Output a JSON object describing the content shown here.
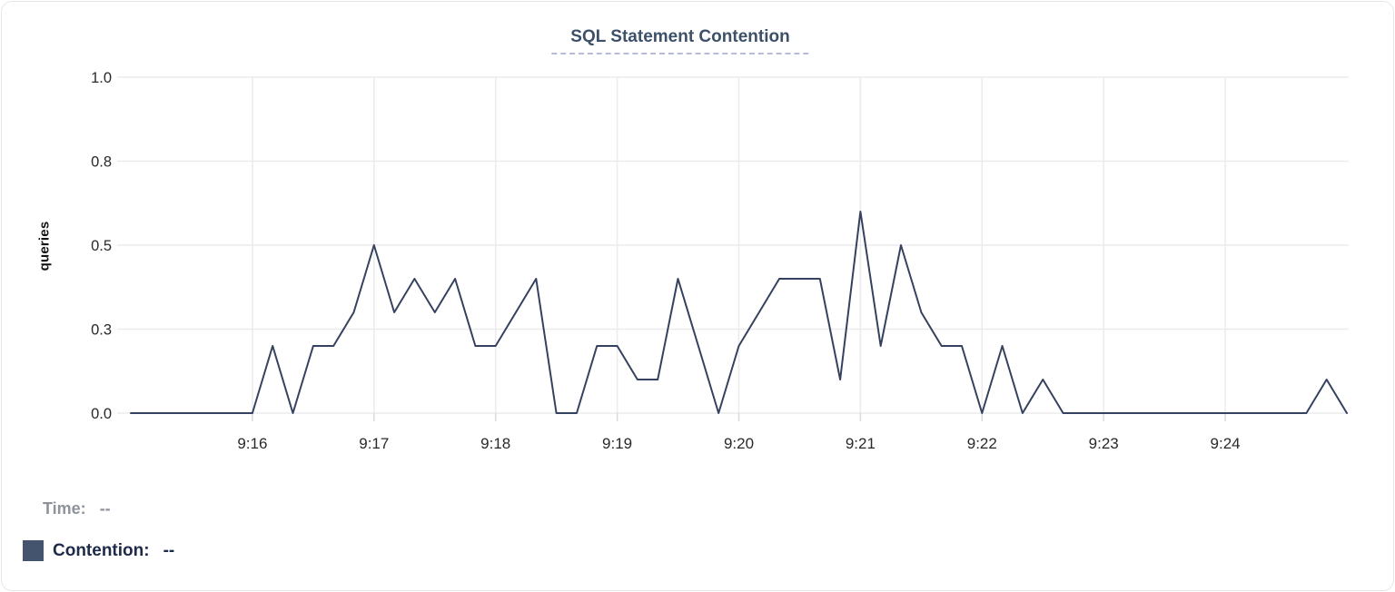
{
  "colors": {
    "line": "#35425f",
    "grid": "#ececef",
    "tick": "#dadade",
    "axis_text": "#28292b",
    "title": "#3d5069",
    "title_underline": "#b6bbd9",
    "legend_time": "#8e939b",
    "legend_series": "#1e2a49",
    "swatch": "#44536e",
    "card_border": "#e7e7ea"
  },
  "legend": {
    "time_label": "Time:",
    "time_value": "--",
    "series_label": "Contention:",
    "series_value": "--"
  },
  "chart_data": {
    "type": "line",
    "title": "SQL Statement Contention",
    "ylabel": "queries",
    "xlabel": "",
    "series_name": "Contention",
    "legend_position": "bottom-left",
    "grid": true,
    "ylim": [
      0,
      1
    ],
    "y_ticks": [
      {
        "value": 0.0,
        "label": "0.0"
      },
      {
        "value": 0.25,
        "label": "0.3"
      },
      {
        "value": 0.5,
        "label": "0.5"
      },
      {
        "value": 0.75,
        "label": "0.8"
      },
      {
        "value": 1.0,
        "label": "1.0"
      }
    ],
    "x_start": "9:15:00",
    "x_end": "9:25:00",
    "interval_seconds": 10,
    "x_tick_labels": [
      "9:16",
      "9:17",
      "9:18",
      "9:19",
      "9:20",
      "9:21",
      "9:22",
      "9:23",
      "9:24"
    ],
    "values": [
      0,
      0,
      0,
      0,
      0,
      0,
      0,
      0.2,
      0,
      0.2,
      0.2,
      0.3,
      0.5,
      0.3,
      0.4,
      0.3,
      0.4,
      0.2,
      0.2,
      0.3,
      0.4,
      0,
      0,
      0.2,
      0.2,
      0.1,
      0.1,
      0.4,
      0.2,
      0,
      0.2,
      0.3,
      0.4,
      0.4,
      0.4,
      0.1,
      0.6,
      0.2,
      0.5,
      0.3,
      0.2,
      0.2,
      0,
      0.2,
      0,
      0.1,
      0,
      0,
      0,
      0,
      0,
      0,
      0,
      0,
      0,
      0,
      0,
      0,
      0,
      0.1,
      0
    ]
  }
}
